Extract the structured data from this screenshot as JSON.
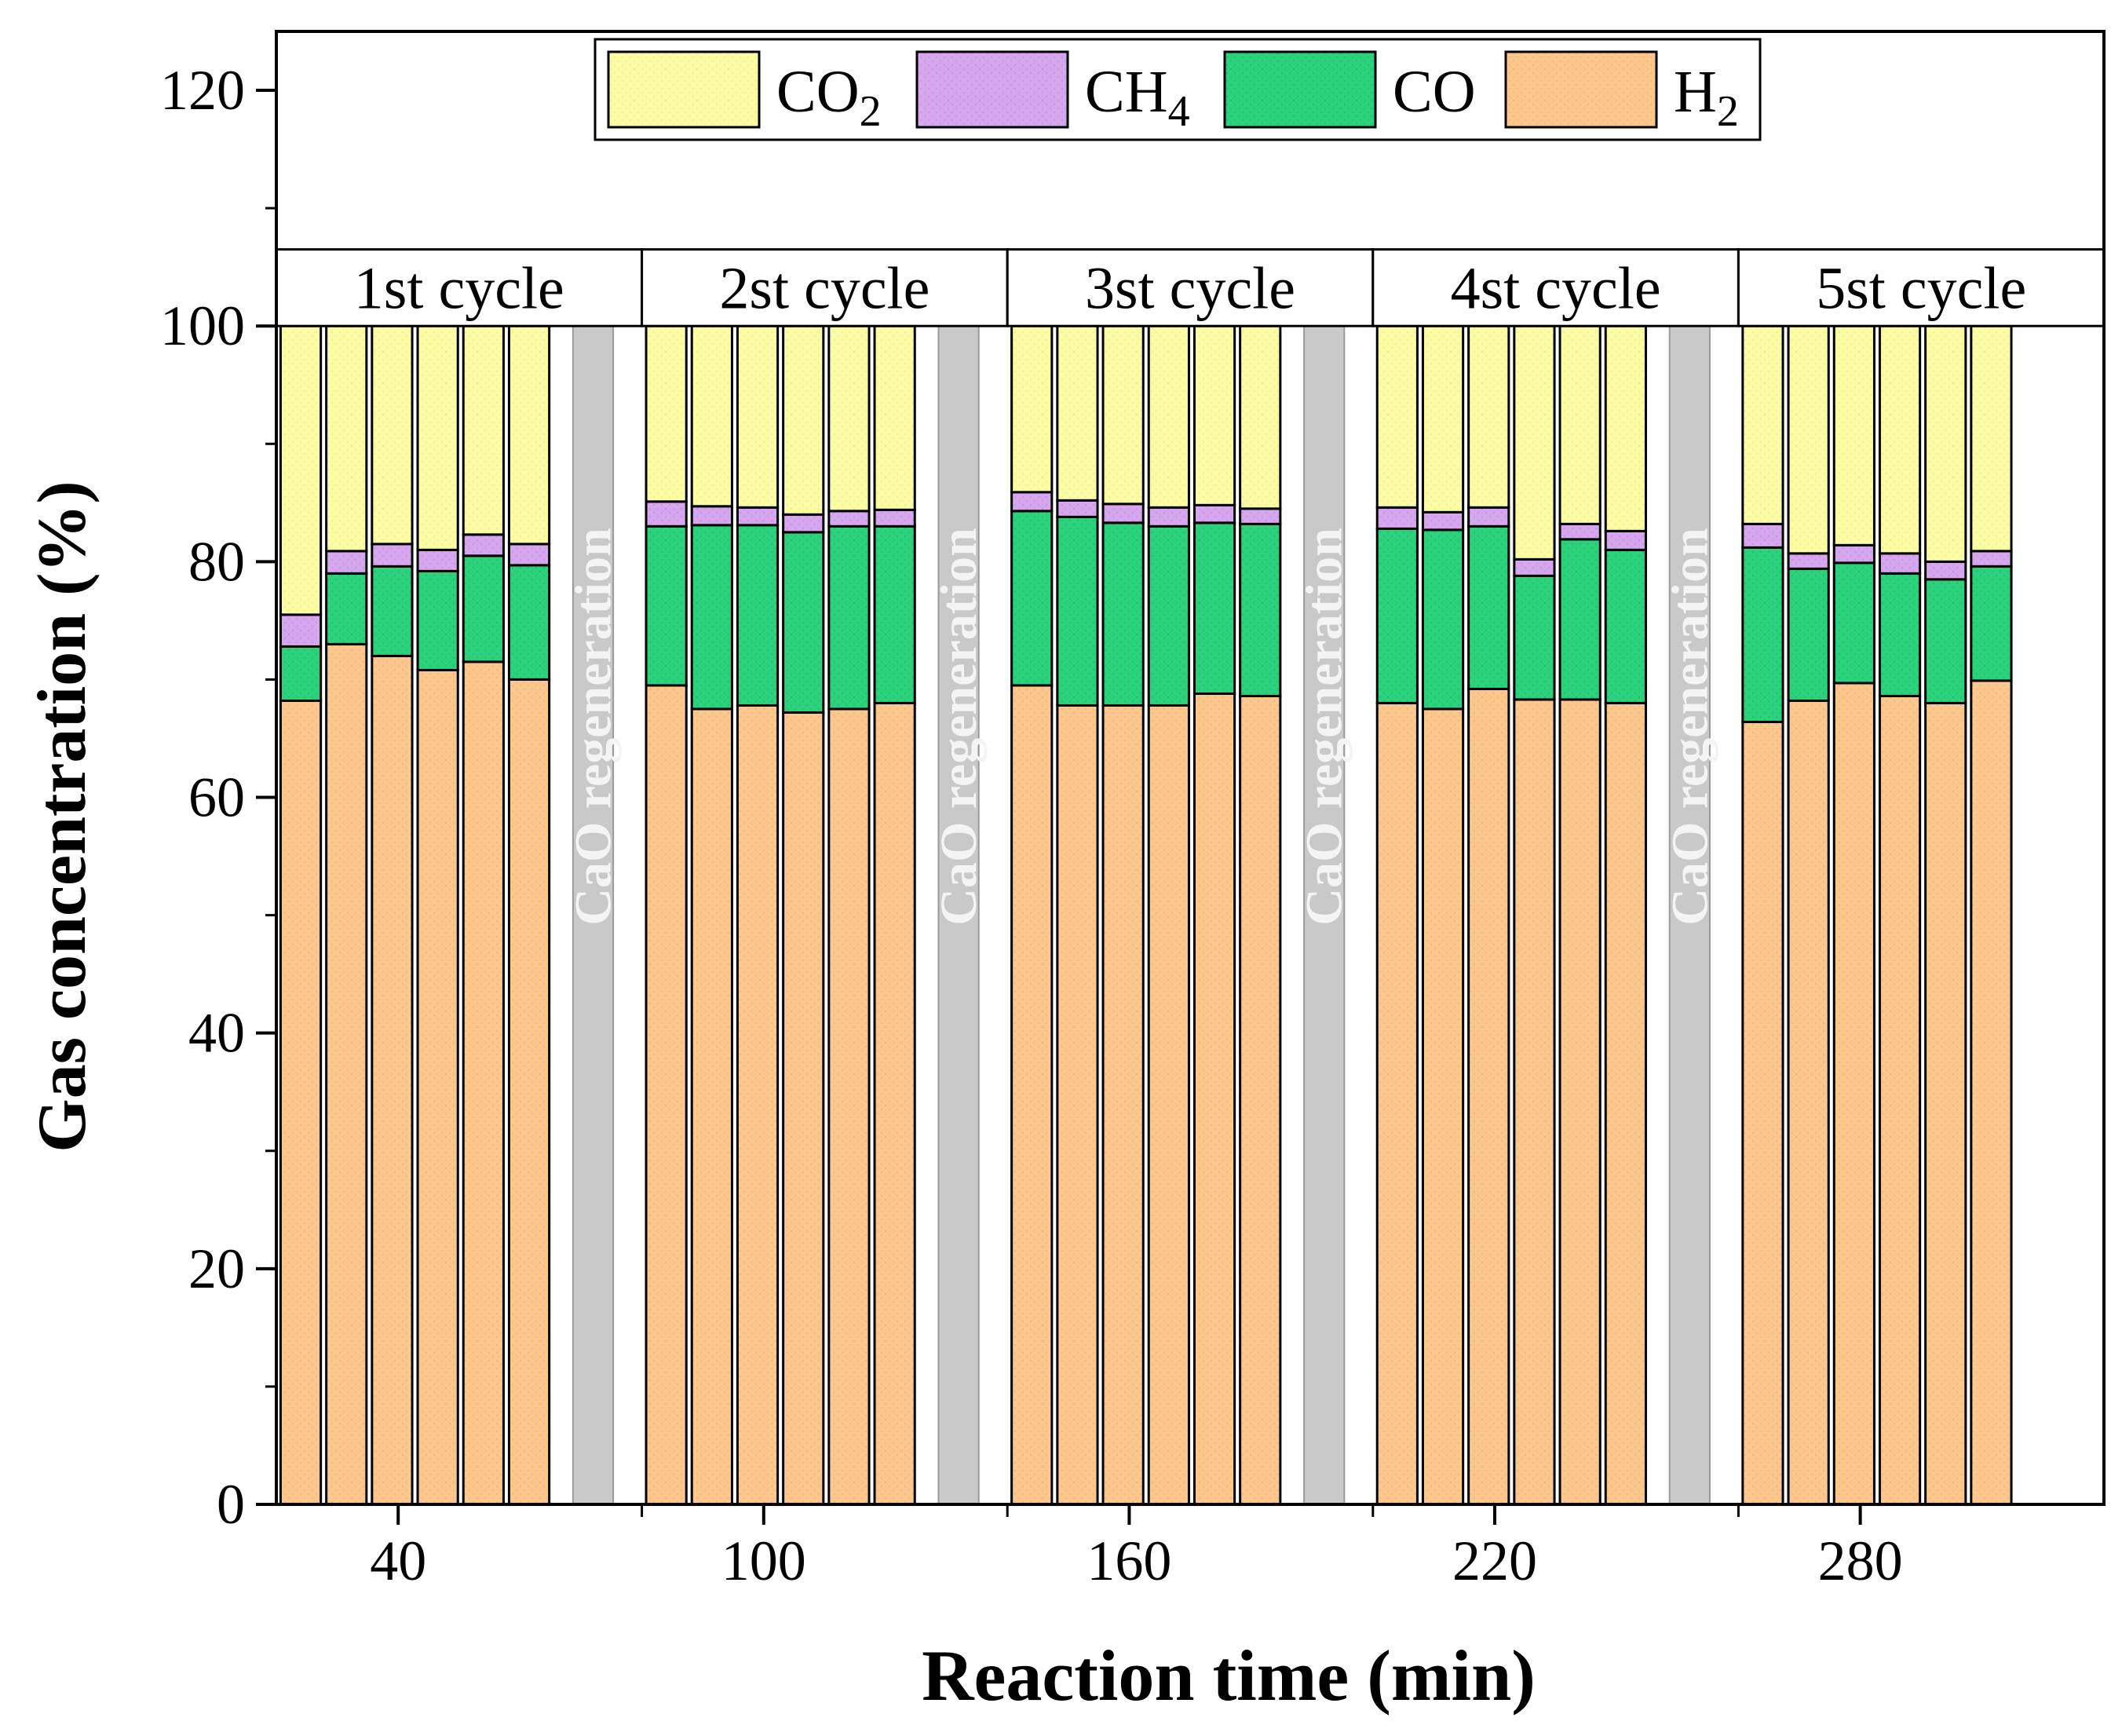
{
  "chart_data": {
    "type": "bar",
    "stacked": true,
    "xlabel": "Reaction time (min)",
    "ylabel": "Gas concentration (%)",
    "ylim": [
      0,
      125
    ],
    "yticks": [
      "0",
      "20",
      "40",
      "60",
      "80",
      "100",
      "120"
    ],
    "xlim": [
      20,
      320
    ],
    "xticks": [
      "40",
      "100",
      "160",
      "220",
      "280"
    ],
    "legend": {
      "position": "top",
      "entries": [
        {
          "key": "CO2",
          "label": "CO",
          "sub": "2"
        },
        {
          "key": "CH4",
          "label": "CH",
          "sub": "4"
        },
        {
          "key": "CO",
          "label": "CO",
          "sub": ""
        },
        {
          "key": "H2",
          "label": "H",
          "sub": "2"
        }
      ]
    },
    "colors": {
      "H2": "#FCC78D",
      "CO": "#2BD27B",
      "CH4": "#D6A6EE",
      "CO2": "#FCFCA4",
      "regen": "#C9C9C9",
      "regen_text": "#F4F4F4",
      "axis": "#000000"
    },
    "cycles": [
      {
        "label": "1st cycle",
        "x_range": [
          20,
          80
        ],
        "bars": [
          {
            "x": 24,
            "H2": 68.2,
            "CO": 4.6,
            "CH4": 2.7,
            "CO2": 24.5
          },
          {
            "x": 31.5,
            "H2": 73.0,
            "CO": 6.0,
            "CH4": 1.9,
            "CO2": 19.1
          },
          {
            "x": 39,
            "H2": 72.0,
            "CO": 7.6,
            "CH4": 1.9,
            "CO2": 18.5
          },
          {
            "x": 46.5,
            "H2": 70.8,
            "CO": 8.4,
            "CH4": 1.8,
            "CO2": 19.0
          },
          {
            "x": 54,
            "H2": 71.5,
            "CO": 9.0,
            "CH4": 1.8,
            "CO2": 17.7
          },
          {
            "x": 61.5,
            "H2": 70.0,
            "CO": 9.7,
            "CH4": 1.8,
            "CO2": 18.5
          }
        ],
        "regeneration": {
          "x": 72,
          "label": "CaO regeneration"
        }
      },
      {
        "label": "2st cycle",
        "x_range": [
          80,
          140
        ],
        "bars": [
          {
            "x": 84,
            "H2": 69.5,
            "CO": 13.5,
            "CH4": 2.1,
            "CO2": 14.9
          },
          {
            "x": 91.5,
            "H2": 67.5,
            "CO": 15.6,
            "CH4": 1.6,
            "CO2": 15.3
          },
          {
            "x": 99,
            "H2": 67.8,
            "CO": 15.3,
            "CH4": 1.5,
            "CO2": 15.4
          },
          {
            "x": 106.5,
            "H2": 67.2,
            "CO": 15.3,
            "CH4": 1.5,
            "CO2": 16.0
          },
          {
            "x": 114,
            "H2": 67.5,
            "CO": 15.5,
            "CH4": 1.3,
            "CO2": 15.7
          },
          {
            "x": 121.5,
            "H2": 68.0,
            "CO": 15.0,
            "CH4": 1.4,
            "CO2": 15.6
          }
        ],
        "regeneration": {
          "x": 132,
          "label": "CaO regeneration"
        }
      },
      {
        "label": "3st cycle",
        "x_range": [
          140,
          200
        ],
        "bars": [
          {
            "x": 144,
            "H2": 69.5,
            "CO": 14.8,
            "CH4": 1.6,
            "CO2": 14.1
          },
          {
            "x": 151.5,
            "H2": 67.8,
            "CO": 16.0,
            "CH4": 1.4,
            "CO2": 14.8
          },
          {
            "x": 159,
            "H2": 67.8,
            "CO": 15.5,
            "CH4": 1.6,
            "CO2": 15.1
          },
          {
            "x": 166.5,
            "H2": 67.8,
            "CO": 15.2,
            "CH4": 1.6,
            "CO2": 15.4
          },
          {
            "x": 174,
            "H2": 68.8,
            "CO": 14.5,
            "CH4": 1.5,
            "CO2": 15.2
          },
          {
            "x": 181.5,
            "H2": 68.6,
            "CO": 14.6,
            "CH4": 1.3,
            "CO2": 15.5
          }
        ],
        "regeneration": {
          "x": 192,
          "label": "CaO regeneration"
        }
      },
      {
        "label": "4st cycle",
        "x_range": [
          200,
          260
        ],
        "bars": [
          {
            "x": 204,
            "H2": 68.0,
            "CO": 14.8,
            "CH4": 1.8,
            "CO2": 15.4
          },
          {
            "x": 211.5,
            "H2": 67.5,
            "CO": 15.2,
            "CH4": 1.5,
            "CO2": 15.8
          },
          {
            "x": 219,
            "H2": 69.2,
            "CO": 13.8,
            "CH4": 1.6,
            "CO2": 15.4
          },
          {
            "x": 226.5,
            "H2": 68.3,
            "CO": 10.5,
            "CH4": 1.4,
            "CO2": 19.8
          },
          {
            "x": 234,
            "H2": 68.3,
            "CO": 13.6,
            "CH4": 1.3,
            "CO2": 16.8
          },
          {
            "x": 241.5,
            "H2": 68.0,
            "CO": 13.0,
            "CH4": 1.6,
            "CO2": 17.4
          }
        ],
        "regeneration": {
          "x": 252,
          "label": "CaO regeneration"
        }
      },
      {
        "label": "5st cycle",
        "x_range": [
          260,
          320
        ],
        "bars": [
          {
            "x": 264,
            "H2": 66.4,
            "CO": 14.8,
            "CH4": 2.0,
            "CO2": 16.8
          },
          {
            "x": 271.5,
            "H2": 68.2,
            "CO": 11.2,
            "CH4": 1.3,
            "CO2": 19.3
          },
          {
            "x": 279,
            "H2": 69.7,
            "CO": 10.2,
            "CH4": 1.5,
            "CO2": 18.6
          },
          {
            "x": 286.5,
            "H2": 68.6,
            "CO": 10.4,
            "CH4": 1.7,
            "CO2": 19.3
          },
          {
            "x": 294,
            "H2": 68.0,
            "CO": 10.5,
            "CH4": 1.5,
            "CO2": 20.0
          },
          {
            "x": 301.5,
            "H2": 69.9,
            "CO": 9.7,
            "CH4": 1.3,
            "CO2": 19.1
          }
        ],
        "regeneration": null
      }
    ]
  }
}
